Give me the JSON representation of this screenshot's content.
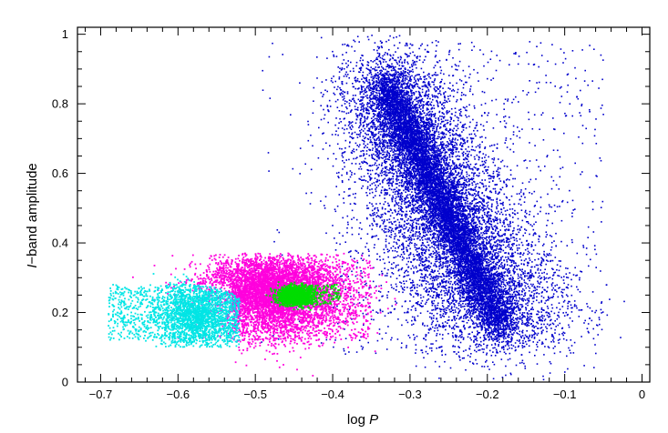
{
  "chart_data": {
    "type": "scatter",
    "title": "",
    "xlabel_text": "log ",
    "xlabel_var": "P",
    "ylabel_var": "I",
    "ylabel_text": "−band  amplitude",
    "xlim": [
      -0.73,
      0.01
    ],
    "ylim": [
      0,
      1.02
    ],
    "xticks": [
      -0.7,
      -0.6,
      -0.5,
      -0.4,
      -0.3,
      -0.2,
      -0.1,
      0
    ],
    "xtick_labels": [
      "−0.7",
      "−0.6",
      "−0.5",
      "−0.4",
      "−0.3",
      "−0.2",
      "−0.1",
      "0"
    ],
    "yticks": [
      0,
      0.2,
      0.4,
      0.6,
      0.8,
      1
    ],
    "ytick_labels": [
      "0",
      "0.2",
      "0.4",
      "0.6",
      "0.8",
      "1"
    ],
    "grid": false,
    "legend": "none",
    "series": [
      {
        "color": "#0000cc",
        "approx_count": 16000,
        "description_points": [
          {
            "x": -0.34,
            "y": 0.86
          },
          {
            "x": -0.32,
            "y": 0.82
          },
          {
            "x": -0.3,
            "y": 0.76
          },
          {
            "x": -0.28,
            "y": 0.68
          },
          {
            "x": -0.26,
            "y": 0.6
          },
          {
            "x": -0.24,
            "y": 0.52
          },
          {
            "x": -0.22,
            "y": 0.42
          },
          {
            "x": -0.2,
            "y": 0.3
          },
          {
            "x": -0.19,
            "y": 0.2
          },
          {
            "x": -0.18,
            "y": 0.14
          }
        ]
      },
      {
        "color": "#ff00dd",
        "approx_count": 6500,
        "description_points": [
          {
            "x": -0.55,
            "y": 0.32
          },
          {
            "x": -0.5,
            "y": 0.3
          },
          {
            "x": -0.47,
            "y": 0.28
          },
          {
            "x": -0.44,
            "y": 0.26
          },
          {
            "x": -0.4,
            "y": 0.22
          },
          {
            "x": -0.48,
            "y": 0.15
          }
        ]
      },
      {
        "color": "#00e5e5",
        "approx_count": 2600,
        "description_points": [
          {
            "x": -0.6,
            "y": 0.22
          },
          {
            "x": -0.58,
            "y": 0.18
          },
          {
            "x": -0.56,
            "y": 0.15
          },
          {
            "x": -0.62,
            "y": 0.24
          },
          {
            "x": -0.65,
            "y": 0.2
          }
        ]
      },
      {
        "color": "#00dd00",
        "approx_count": 1800,
        "description_points": [
          {
            "x": -0.45,
            "y": 0.25
          },
          {
            "x": -0.44,
            "y": 0.24
          },
          {
            "x": -0.42,
            "y": 0.27
          }
        ]
      }
    ]
  }
}
